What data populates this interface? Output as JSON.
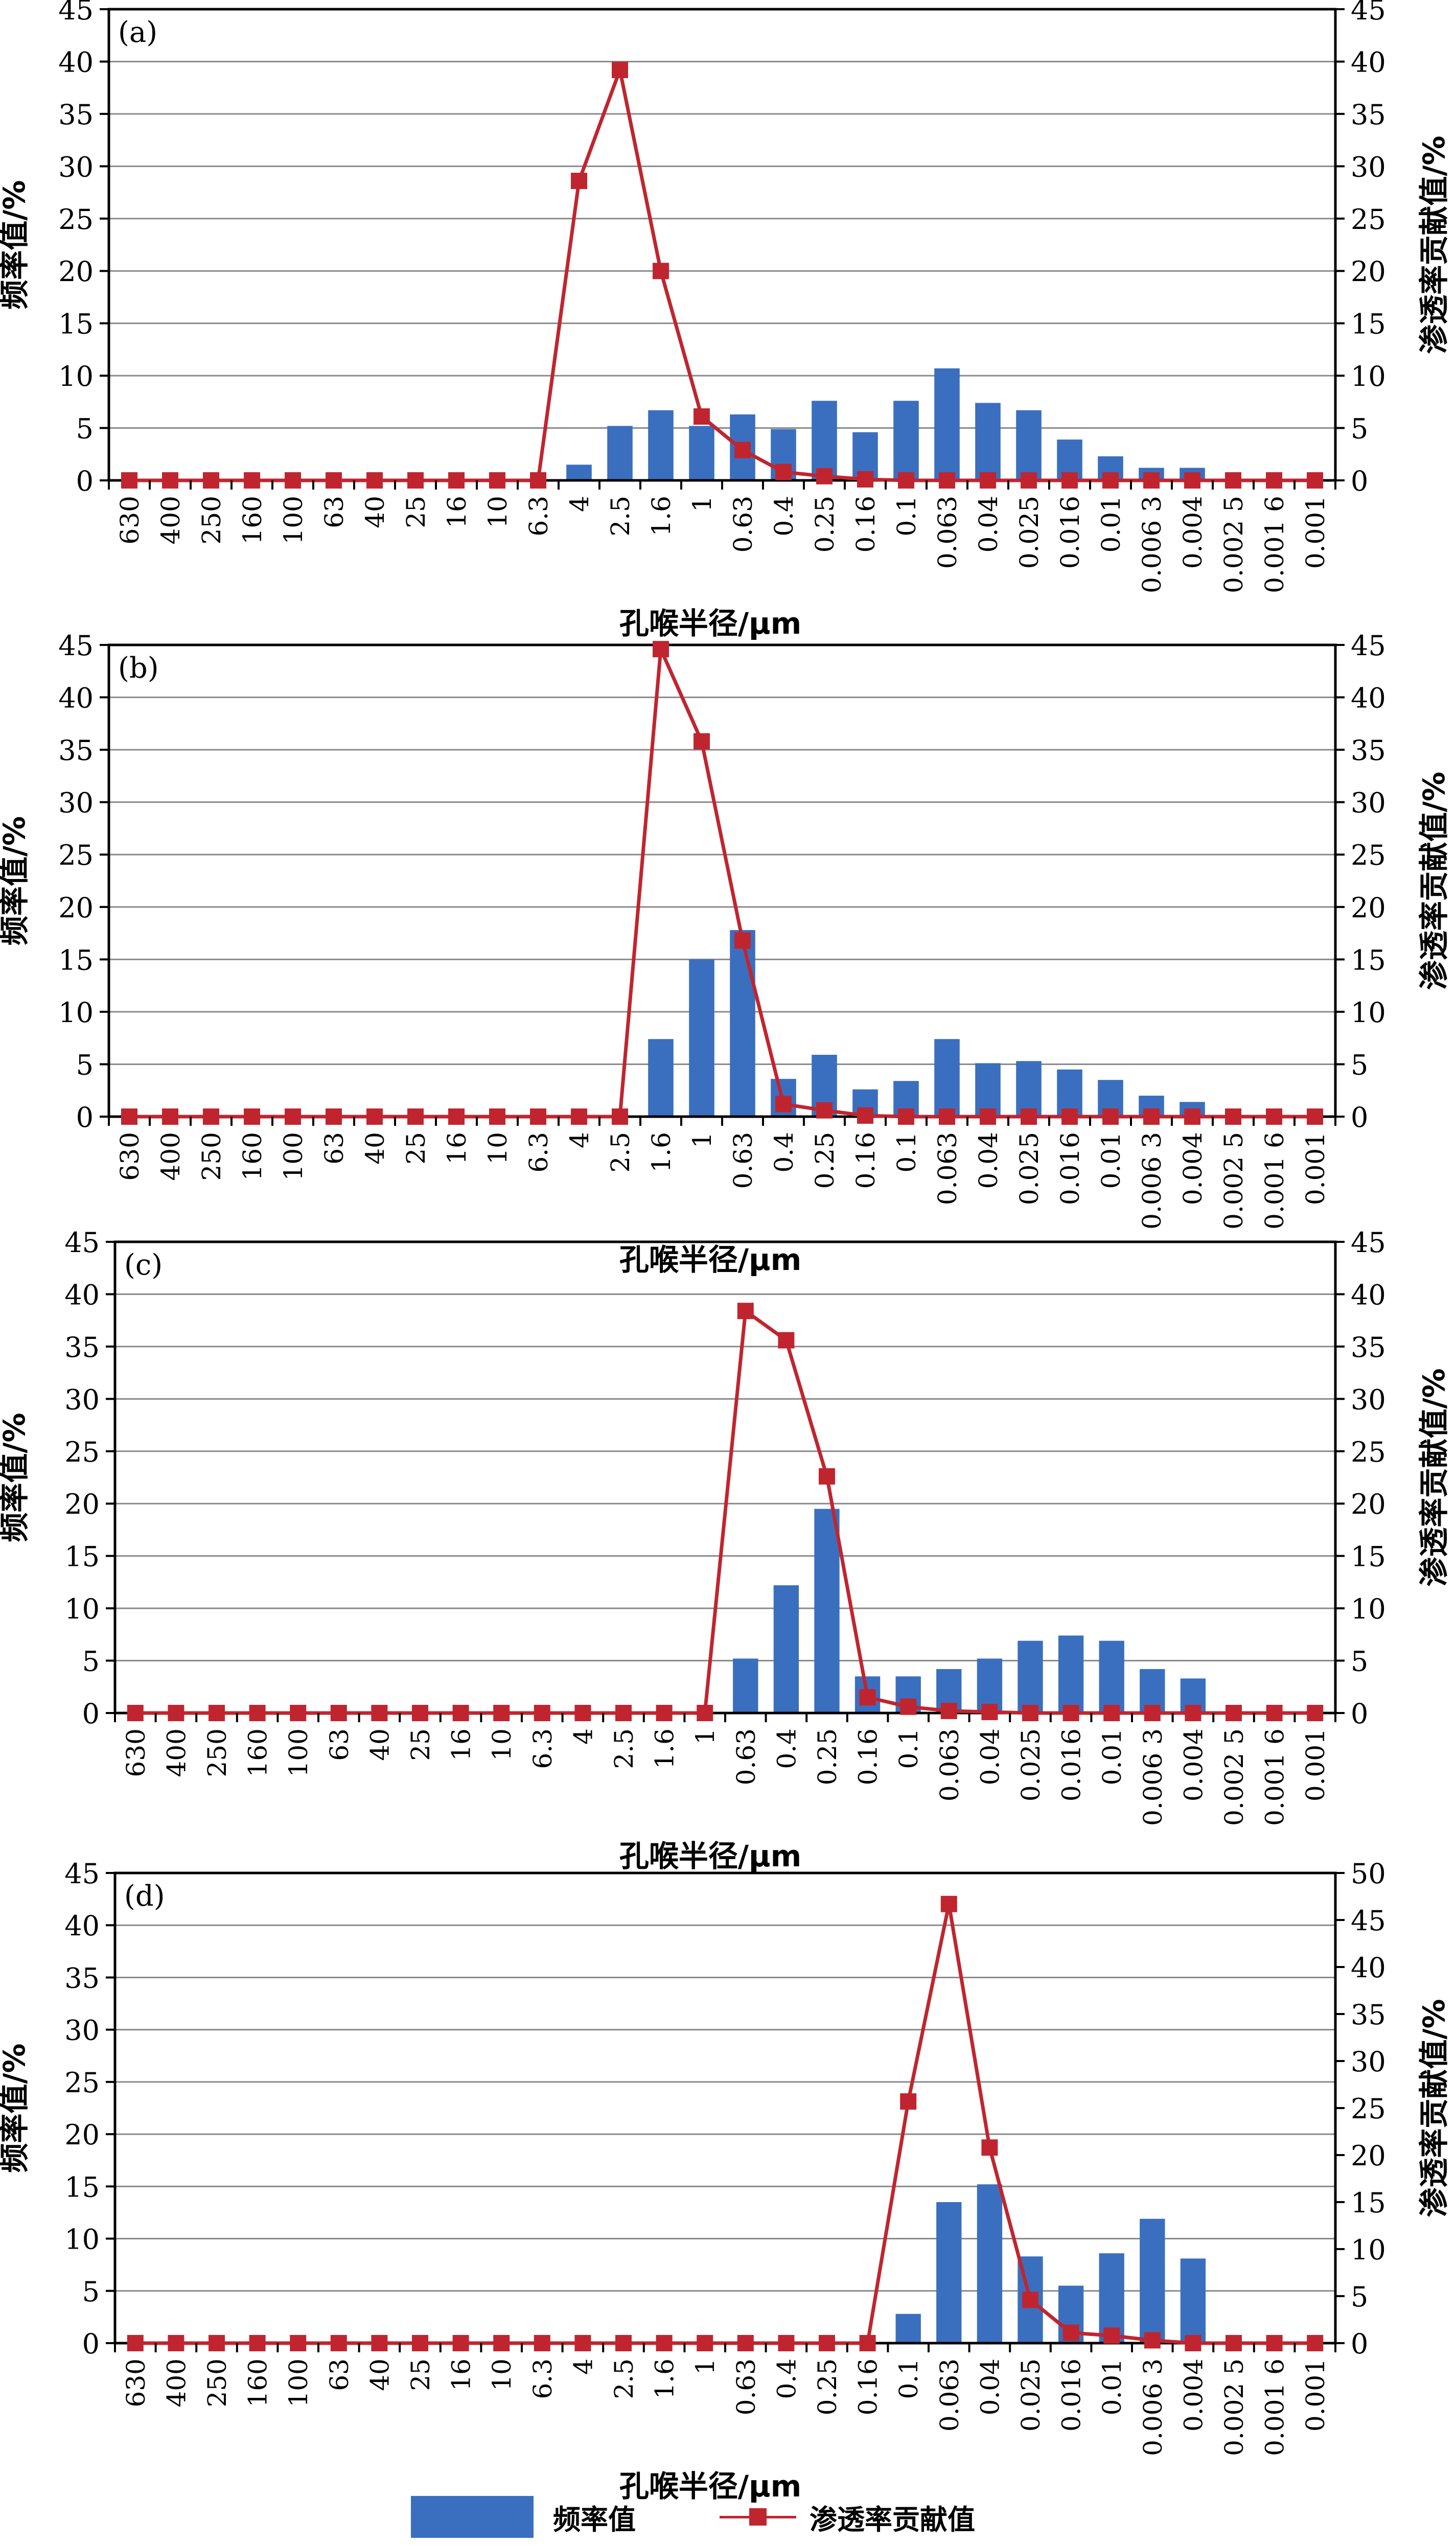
{
  "chart_data": [
    {
      "type": "bar",
      "panel_label": "(a)",
      "xlabel": "孔喉半径/μm",
      "ylabel_left": "频率值/%",
      "ylabel_right": "渗透率贡献值/%",
      "categories": [
        "630",
        "400",
        "250",
        "160",
        "100",
        "63",
        "40",
        "25",
        "16",
        "10",
        "6.3",
        "4",
        "2.5",
        "1.6",
        "1",
        "0.63",
        "0.4",
        "0.25",
        "0.16",
        "0.1",
        "0.063",
        "0.04",
        "0.025",
        "0.016",
        "0.01",
        "0.006 3",
        "0.004",
        "0.002 5",
        "0.001 6",
        "0.001"
      ],
      "ylim_left": [
        0,
        45
      ],
      "ylim_right": [
        0,
        45
      ],
      "yticks_left": [
        "0",
        "5",
        "10",
        "15",
        "20",
        "25",
        "30",
        "35",
        "40",
        "45"
      ],
      "yticks_right": [
        "0",
        "5",
        "10",
        "15",
        "20",
        "25",
        "30",
        "35",
        "40",
        "45"
      ],
      "series": [
        {
          "name": "频率值",
          "type": "bar",
          "axis": "left",
          "color": "#3a6fbf",
          "values": [
            0,
            0,
            0,
            0,
            0,
            0,
            0,
            0,
            0,
            0,
            0,
            1.5,
            5.2,
            6.7,
            5.2,
            6.3,
            4.9,
            7.6,
            4.6,
            7.6,
            10.7,
            7.4,
            6.7,
            3.9,
            2.3,
            1.2,
            1.2,
            0,
            0,
            0
          ]
        },
        {
          "name": "渗透率贡献值",
          "type": "line",
          "axis": "right",
          "color": "#c0252f",
          "values": [
            0,
            0,
            0,
            0,
            0,
            0,
            0,
            0,
            0,
            0,
            0,
            28.6,
            39.2,
            20.0,
            6.1,
            2.9,
            0.8,
            0.4,
            0.1,
            0,
            0,
            0,
            0,
            0,
            0,
            0,
            0,
            0,
            0,
            0
          ]
        }
      ],
      "grid": true
    },
    {
      "type": "bar",
      "panel_label": "(b)",
      "xlabel": "孔喉半径/μm",
      "ylabel_left": "频率值/%",
      "ylabel_right": "渗透率贡献值/%",
      "categories": [
        "630",
        "400",
        "250",
        "160",
        "100",
        "63",
        "40",
        "25",
        "16",
        "10",
        "6.3",
        "4",
        "2.5",
        "1.6",
        "1",
        "0.63",
        "0.4",
        "0.25",
        "0.16",
        "0.1",
        "0.063",
        "0.04",
        "0.025",
        "0.016",
        "0.01",
        "0.006 3",
        "0.004",
        "0.002 5",
        "0.001 6",
        "0.001"
      ],
      "ylim_left": [
        0,
        45
      ],
      "ylim_right": [
        0,
        45
      ],
      "yticks_left": [
        "0",
        "5",
        "10",
        "15",
        "20",
        "25",
        "30",
        "35",
        "40",
        "45"
      ],
      "yticks_right": [
        "0",
        "5",
        "10",
        "15",
        "20",
        "25",
        "30",
        "35",
        "40",
        "45"
      ],
      "series": [
        {
          "name": "频率值",
          "type": "bar",
          "axis": "left",
          "color": "#3a6fbf",
          "values": [
            0,
            0,
            0,
            0,
            0,
            0,
            0,
            0,
            0,
            0,
            0,
            0,
            0,
            7.4,
            15.0,
            17.8,
            3.6,
            5.9,
            2.6,
            3.4,
            7.4,
            5.1,
            5.3,
            4.5,
            3.5,
            2.0,
            1.4,
            0,
            0,
            0
          ]
        },
        {
          "name": "渗透率贡献值",
          "type": "line",
          "axis": "right",
          "color": "#c0252f",
          "values": [
            0,
            0,
            0,
            0,
            0,
            0,
            0,
            0,
            0,
            0,
            0,
            0,
            0,
            44.6,
            35.8,
            16.8,
            1.2,
            0.6,
            0.1,
            0,
            0,
            0,
            0,
            0,
            0,
            0,
            0,
            0,
            0,
            0
          ]
        }
      ],
      "grid": true
    },
    {
      "type": "bar",
      "panel_label": "(c)",
      "xlabel": "孔喉半径/μm",
      "ylabel_left": "频率值/%",
      "ylabel_right": "渗透率贡献值/%",
      "categories": [
        "630",
        "400",
        "250",
        "160",
        "100",
        "63",
        "40",
        "25",
        "16",
        "10",
        "6.3",
        "4",
        "2.5",
        "1.6",
        "1",
        "0.63",
        "0.4",
        "0.25",
        "0.16",
        "0.1",
        "0.063",
        "0.04",
        "0.025",
        "0.016",
        "0.01",
        "0.006 3",
        "0.004",
        "0.002 5",
        "0.001 6",
        "0.001"
      ],
      "ylim_left": [
        0,
        45
      ],
      "ylim_right": [
        0,
        45
      ],
      "yticks_left": [
        "0",
        "5",
        "10",
        "15",
        "20",
        "25",
        "30",
        "35",
        "40",
        "45"
      ],
      "yticks_right": [
        "0",
        "5",
        "10",
        "15",
        "20",
        "25",
        "30",
        "35",
        "40",
        "45"
      ],
      "series": [
        {
          "name": "频率值",
          "type": "bar",
          "axis": "left",
          "color": "#3a6fbf",
          "values": [
            0,
            0,
            0,
            0,
            0,
            0,
            0,
            0,
            0,
            0,
            0,
            0,
            0,
            0,
            0,
            5.2,
            12.2,
            19.5,
            3.5,
            3.5,
            4.2,
            5.2,
            6.9,
            7.4,
            6.9,
            4.2,
            3.3,
            0,
            0,
            0
          ]
        },
        {
          "name": "渗透率贡献值",
          "type": "line",
          "axis": "right",
          "color": "#c0252f",
          "values": [
            0,
            0,
            0,
            0,
            0,
            0,
            0,
            0,
            0,
            0,
            0,
            0,
            0,
            0,
            0,
            38.4,
            35.6,
            22.6,
            1.5,
            0.6,
            0.2,
            0.1,
            0,
            0,
            0,
            0,
            0,
            0,
            0,
            0
          ]
        }
      ],
      "grid": true
    },
    {
      "type": "bar",
      "panel_label": "(d)",
      "xlabel": "孔喉半径/μm",
      "ylabel_left": "频率值/%",
      "ylabel_right": "渗透率贡献值/%",
      "categories": [
        "630",
        "400",
        "250",
        "160",
        "100",
        "63",
        "40",
        "25",
        "16",
        "10",
        "6.3",
        "4",
        "2.5",
        "1.6",
        "1",
        "0.63",
        "0.4",
        "0.25",
        "0.16",
        "0.1",
        "0.063",
        "0.04",
        "0.025",
        "0.016",
        "0.01",
        "0.006 3",
        "0.004",
        "0.002 5",
        "0.001 6",
        "0.001"
      ],
      "ylim_left": [
        0,
        45
      ],
      "ylim_right": [
        0,
        50
      ],
      "yticks_left": [
        "0",
        "5",
        "10",
        "15",
        "20",
        "25",
        "30",
        "35",
        "40",
        "45"
      ],
      "yticks_right": [
        "0",
        "5",
        "10",
        "15",
        "20",
        "25",
        "30",
        "35",
        "40",
        "45",
        "50"
      ],
      "series": [
        {
          "name": "频率值",
          "type": "bar",
          "axis": "left",
          "color": "#3a6fbf",
          "values": [
            0,
            0,
            0,
            0,
            0,
            0,
            0,
            0,
            0,
            0,
            0,
            0,
            0,
            0,
            0,
            0,
            0,
            0,
            0,
            2.8,
            13.5,
            15.2,
            8.3,
            5.5,
            8.6,
            11.9,
            8.1,
            0,
            0,
            0
          ]
        },
        {
          "name": "渗透率贡献值",
          "type": "line",
          "axis": "right",
          "color": "#c0252f",
          "values": [
            0,
            0,
            0,
            0,
            0,
            0,
            0,
            0,
            0,
            0,
            0,
            0,
            0,
            0,
            0,
            0,
            0,
            0,
            0,
            25.7,
            46.7,
            20.8,
            4.6,
            1.1,
            0.8,
            0.3,
            0,
            0,
            0,
            0
          ]
        }
      ],
      "grid": true
    }
  ],
  "legend": {
    "bar_label": "频率值",
    "line_label": "渗透率贡献值",
    "bar_color": "#3a6fbf",
    "line_color": "#c0252f"
  }
}
